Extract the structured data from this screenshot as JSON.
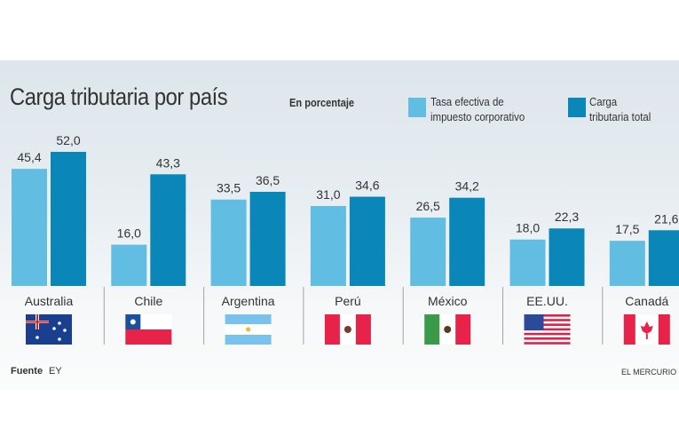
{
  "chart_data": {
    "type": "bar",
    "title": "Carga tributaria por país",
    "subtitle": "En porcentaje",
    "categories": [
      "Australia",
      "Chile",
      "Argentina",
      "Perú",
      "México",
      "EE.UU.",
      "Canadá"
    ],
    "series": [
      {
        "name": "Tasa efectiva de\nimpuesto corporativo",
        "color": "#62bde3",
        "values": [
          45.4,
          16.0,
          33.5,
          31.0,
          26.5,
          18.0,
          17.5
        ],
        "labels": [
          "45,4",
          "16,0",
          "33,5",
          "31,0",
          "26,5",
          "18,0",
          "17,5"
        ]
      },
      {
        "name": "Carga\ntributaria total",
        "color": "#0a87b8",
        "values": [
          52.0,
          43.3,
          36.5,
          34.6,
          34.2,
          22.3,
          21.6
        ],
        "labels": [
          "52,0",
          "43,3",
          "36,5",
          "34,6",
          "34,2",
          "22,3",
          "21,6"
        ]
      }
    ],
    "ylim": [
      0,
      52
    ],
    "grid": false,
    "legend": "top-right",
    "flags": [
      "australia-flag",
      "chile-flag",
      "argentina-flag",
      "peru-flag",
      "mexico-flag",
      "usa-flag",
      "canada-flag"
    ]
  },
  "footer": {
    "source_label": "Fuente",
    "source": "EY",
    "brand": "EL MERCURIO"
  }
}
